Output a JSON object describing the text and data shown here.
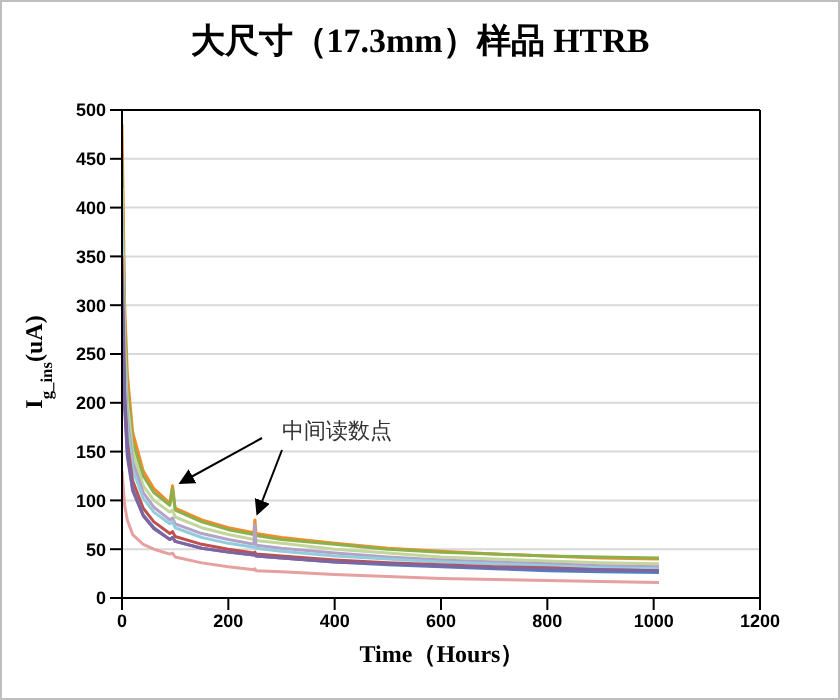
{
  "chart_data": {
    "type": "line",
    "title": "大尺寸（17.3mm）样品 HTRB",
    "xlabel": "Time（Hours）",
    "ylabel": "I$_{g_ins}$(uA)",
    "annotations": [
      "中间读数点"
    ],
    "x": [
      0,
      5,
      10,
      20,
      40,
      60,
      90,
      95,
      100,
      150,
      200,
      248,
      250,
      252,
      300,
      400,
      500,
      600,
      700,
      800,
      900,
      1010
    ],
    "series": [
      {
        "color": "#f58a2a",
        "values": [
          485,
          300,
          230,
          170,
          130,
          112,
          97,
          115,
          92,
          80,
          72,
          67,
          80,
          66,
          62,
          56,
          51,
          48,
          45,
          43,
          41,
          40
        ]
      },
      {
        "color": "#8cb04a",
        "values": [
          450,
          280,
          215,
          160,
          125,
          108,
          95,
          112,
          90,
          78,
          70,
          65,
          66,
          64,
          60,
          55,
          50,
          47,
          45,
          43,
          42,
          41
        ]
      },
      {
        "color": "#c3d69b",
        "values": [
          420,
          260,
          200,
          150,
          115,
          100,
          88,
          90,
          83,
          72,
          65,
          60,
          61,
          59,
          56,
          50,
          46,
          42,
          40,
          38,
          36,
          35
        ]
      },
      {
        "color": "#b3a2c7",
        "values": [
          400,
          240,
          185,
          140,
          108,
          93,
          80,
          82,
          76,
          66,
          60,
          55,
          75,
          54,
          51,
          46,
          42,
          39,
          37,
          35,
          33,
          32
        ]
      },
      {
        "color": "#93cddd",
        "values": [
          380,
          230,
          175,
          132,
          102,
          88,
          76,
          78,
          72,
          62,
          56,
          52,
          53,
          51,
          48,
          43,
          40,
          37,
          35,
          33,
          31,
          30
        ]
      },
      {
        "color": "#c0504d",
        "values": [
          350,
          210,
          160,
          120,
          92,
          78,
          66,
          68,
          63,
          55,
          50,
          46,
          47,
          45,
          43,
          39,
          36,
          34,
          32,
          31,
          29,
          28
        ]
      },
      {
        "color": "#4f81bd",
        "values": [
          330,
          200,
          150,
          112,
          85,
          72,
          60,
          62,
          58,
          51,
          47,
          44,
          45,
          43,
          41,
          37,
          34,
          32,
          30,
          28,
          27,
          26
        ]
      },
      {
        "color": "#8064a2",
        "values": [
          320,
          195,
          145,
          110,
          84,
          71,
          60,
          62,
          58,
          51,
          47,
          44,
          45,
          43,
          41,
          37,
          35,
          33,
          31,
          30,
          29,
          28
        ]
      },
      {
        "color": "#e6a0a0",
        "values": [
          130,
          95,
          80,
          65,
          55,
          50,
          45,
          46,
          42,
          36,
          32,
          29,
          30,
          28,
          27,
          24,
          22,
          20,
          19,
          18,
          17,
          16
        ]
      }
    ],
    "xlim": [
      0,
      1200
    ],
    "xticks": [
      0,
      200,
      400,
      600,
      800,
      1000,
      1200
    ],
    "ylim": [
      0,
      500
    ],
    "yticks": [
      0,
      50,
      100,
      150,
      200,
      250,
      300,
      350,
      400,
      450,
      500
    ],
    "grid": "y",
    "legend": false,
    "marker": "none",
    "line_style": "solid"
  }
}
